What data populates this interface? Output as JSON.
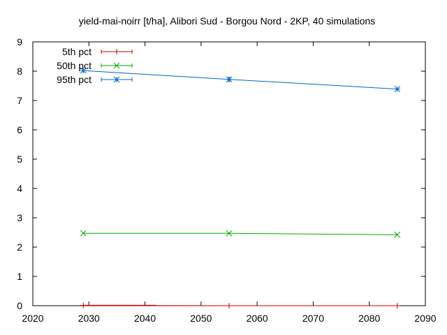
{
  "chart_data": {
    "type": "line",
    "title": "yield-mai-noirr [t/ha], Alibori Sud - Borgou Nord - 2KP, 40 simulations",
    "xlabel": "",
    "ylabel": "",
    "xlim": [
      2020,
      2090
    ],
    "ylim": [
      0,
      9
    ],
    "xticks": [
      2020,
      2030,
      2040,
      2050,
      2060,
      2070,
      2080,
      2090
    ],
    "yticks": [
      0,
      1,
      2,
      3,
      4,
      5,
      6,
      7,
      8,
      9
    ],
    "grid": false,
    "legend_position": "top-left",
    "series": [
      {
        "name": "5th pct",
        "color": "#cc0000",
        "marker": "plus",
        "points": [
          {
            "x": 2029,
            "y": 0.01,
            "xerr": [
              2029,
              2042
            ]
          },
          {
            "x": 2055,
            "y": 0.0
          },
          {
            "x": 2085,
            "y": 0.0
          }
        ]
      },
      {
        "name": "50th pct",
        "color": "#00aa00",
        "marker": "cross",
        "points": [
          {
            "x": 2029,
            "y": 2.47
          },
          {
            "x": 2055,
            "y": 2.47
          },
          {
            "x": 2085,
            "y": 2.42
          }
        ]
      },
      {
        "name": "95th pct",
        "color": "#0066cc",
        "marker": "star",
        "points": [
          {
            "x": 2029,
            "y": 8.02
          },
          {
            "x": 2055,
            "y": 7.72,
            "yerr": [
              7.66,
              7.78
            ]
          },
          {
            "x": 2085,
            "y": 7.39
          }
        ]
      }
    ]
  }
}
